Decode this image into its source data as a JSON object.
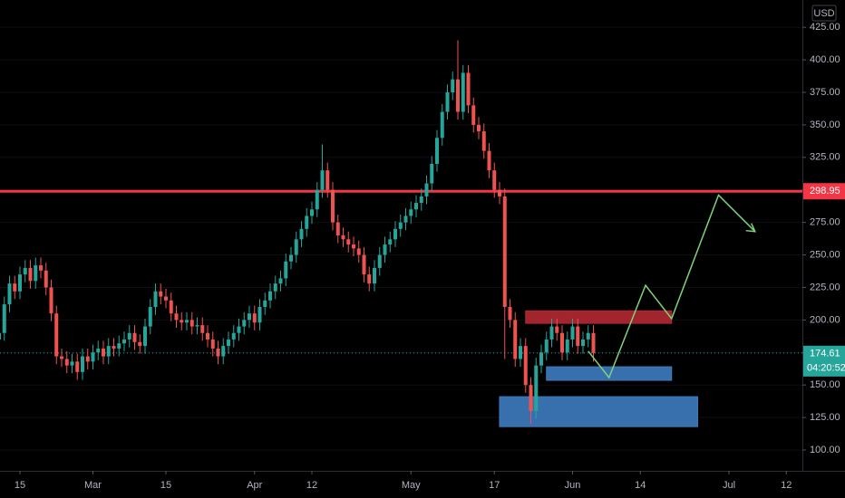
{
  "chart_data": {
    "type": "candlestick",
    "currency": "USD",
    "categories": [
      "Feb 11",
      "Feb 12",
      "Feb 13",
      "Feb 14",
      "Feb 15",
      "Feb 16",
      "Feb 17",
      "Feb 18",
      "Feb 19",
      "Feb 20",
      "Feb 21",
      "Feb 22",
      "Feb 23",
      "Feb 24",
      "Feb 25",
      "Feb 26",
      "Feb 27",
      "Feb 28",
      "Mar 1",
      "Mar 2",
      "Mar 3",
      "Mar 4",
      "Mar 5",
      "Mar 6",
      "Mar 7",
      "Mar 8",
      "Mar 9",
      "Mar 10",
      "Mar 11",
      "Mar 12",
      "Mar 13",
      "Mar 14",
      "Mar 15",
      "Mar 16",
      "Mar 17",
      "Mar 18",
      "Mar 19",
      "Mar 20",
      "Mar 21",
      "Mar 22",
      "Mar 23",
      "Mar 24",
      "Mar 25",
      "Mar 26",
      "Mar 27",
      "Mar 28",
      "Mar 29",
      "Mar 30",
      "Mar 31",
      "Apr 1",
      "Apr 2",
      "Apr 3",
      "Apr 4",
      "Apr 5",
      "Apr 6",
      "Apr 7",
      "Apr 8",
      "Apr 9",
      "Apr 10",
      "Apr 11",
      "Apr 12",
      "Apr 13",
      "Apr 14",
      "Apr 15",
      "Apr 16",
      "Apr 17",
      "Apr 18",
      "Apr 19",
      "Apr 20",
      "Apr 21",
      "Apr 22",
      "Apr 23",
      "Apr 24",
      "Apr 25",
      "Apr 26",
      "Apr 27",
      "Apr 28",
      "Apr 29",
      "Apr 30",
      "May 1",
      "May 2",
      "May 3",
      "May 4",
      "May 5",
      "May 6",
      "May 7",
      "May 8",
      "May 9",
      "May 10",
      "May 11",
      "May 12",
      "May 13",
      "May 14",
      "May 15",
      "May 16",
      "May 17",
      "May 18",
      "May 19",
      "May 20",
      "May 21",
      "May 22",
      "May 23",
      "May 24",
      "May 25",
      "May 26",
      "May 27",
      "May 28",
      "May 29",
      "May 30",
      "May 31",
      "Jun 1",
      "Jun 2",
      "Jun 3",
      "Jun 4",
      "Jun 5"
    ],
    "open": [
      185,
      190,
      212,
      228,
      222,
      235,
      240,
      230,
      242,
      238,
      225,
      205,
      172,
      170,
      165,
      168,
      160,
      172,
      168,
      175,
      178,
      172,
      180,
      178,
      182,
      185,
      190,
      183,
      180,
      195,
      210,
      222,
      218,
      215,
      205,
      200,
      198,
      200,
      195,
      196,
      190,
      185,
      178,
      172,
      180,
      185,
      190,
      195,
      200,
      205,
      198,
      210,
      215,
      222,
      228,
      232,
      245,
      250,
      262,
      270,
      280,
      285,
      300,
      315,
      300,
      275,
      265,
      262,
      258,
      255,
      250,
      235,
      228,
      240,
      250,
      258,
      262,
      270,
      275,
      280,
      285,
      290,
      295,
      305,
      320,
      340,
      360,
      375,
      385,
      360,
      390,
      365,
      350,
      345,
      330,
      315,
      300,
      295,
      210,
      200,
      170,
      180,
      150,
      130,
      165,
      175,
      185,
      195,
      190,
      175,
      185,
      195,
      180,
      185,
      190
    ],
    "high": [
      196,
      218,
      234,
      234,
      241,
      246,
      246,
      248,
      248,
      244,
      231,
      211,
      178,
      176,
      174,
      174,
      178,
      178,
      181,
      184,
      184,
      186,
      186,
      188,
      191,
      196,
      196,
      189,
      201,
      216,
      228,
      228,
      224,
      221,
      211,
      206,
      206,
      206,
      202,
      202,
      196,
      191,
      184,
      186,
      191,
      196,
      201,
      206,
      211,
      211,
      216,
      221,
      228,
      234,
      238,
      251,
      256,
      268,
      276,
      286,
      291,
      306,
      335,
      321,
      306,
      281,
      271,
      268,
      264,
      261,
      256,
      241,
      246,
      256,
      264,
      268,
      276,
      281,
      286,
      291,
      296,
      301,
      311,
      326,
      346,
      366,
      381,
      391,
      415,
      396,
      396,
      371,
      356,
      351,
      336,
      321,
      306,
      301,
      216,
      206,
      186,
      186,
      156,
      171,
      181,
      191,
      201,
      201,
      196,
      191,
      201,
      201,
      191,
      196,
      196
    ],
    "low": [
      179,
      184,
      206,
      216,
      216,
      229,
      224,
      224,
      232,
      219,
      199,
      166,
      164,
      159,
      159,
      154,
      154,
      162,
      162,
      169,
      166,
      166,
      172,
      172,
      176,
      179,
      177,
      174,
      174,
      189,
      204,
      212,
      209,
      199,
      194,
      192,
      192,
      189,
      189,
      184,
      179,
      172,
      166,
      166,
      174,
      179,
      184,
      189,
      194,
      192,
      192,
      204,
      209,
      216,
      222,
      226,
      239,
      244,
      256,
      264,
      274,
      279,
      294,
      294,
      269,
      259,
      256,
      252,
      249,
      244,
      229,
      222,
      222,
      234,
      244,
      252,
      256,
      264,
      269,
      274,
      279,
      284,
      289,
      299,
      314,
      334,
      354,
      369,
      354,
      354,
      359,
      344,
      339,
      324,
      309,
      294,
      289,
      170,
      194,
      164,
      164,
      144,
      120,
      124,
      159,
      169,
      179,
      184,
      169,
      169,
      179,
      174,
      174,
      179,
      168
    ],
    "close": [
      190,
      212,
      228,
      222,
      235,
      240,
      230,
      242,
      238,
      225,
      205,
      172,
      170,
      165,
      168,
      160,
      172,
      168,
      175,
      178,
      172,
      180,
      178,
      182,
      185,
      190,
      183,
      180,
      195,
      210,
      222,
      218,
      215,
      205,
      200,
      198,
      200,
      195,
      196,
      190,
      185,
      178,
      172,
      180,
      185,
      190,
      195,
      200,
      205,
      198,
      210,
      215,
      222,
      228,
      232,
      245,
      250,
      262,
      270,
      280,
      285,
      300,
      315,
      300,
      275,
      265,
      262,
      258,
      255,
      250,
      235,
      228,
      240,
      250,
      258,
      262,
      270,
      275,
      280,
      285,
      290,
      295,
      305,
      320,
      340,
      360,
      375,
      385,
      360,
      390,
      365,
      350,
      345,
      330,
      315,
      300,
      295,
      210,
      200,
      170,
      180,
      150,
      130,
      165,
      175,
      185,
      195,
      190,
      175,
      185,
      195,
      180,
      185,
      190,
      174.61
    ],
    "up_color": "#26a69a",
    "down_color": "#ef5350",
    "countdown": "04:20:52",
    "ylim": [
      84,
      446
    ],
    "yticks": [
      {
        "value": 100,
        "label": "100.00"
      },
      {
        "value": 125,
        "label": "125.00"
      },
      {
        "value": 150,
        "label": "150.00"
      },
      {
        "value": 175,
        "label": "175.00"
      },
      {
        "value": 200,
        "label": "200.00"
      },
      {
        "value": 225,
        "label": "225.00"
      },
      {
        "value": 250,
        "label": "250.00"
      },
      {
        "value": 275,
        "label": "275.00"
      },
      {
        "value": 300,
        "label": "300.00"
      },
      {
        "value": 325,
        "label": "325.00"
      },
      {
        "value": 350,
        "label": "350.00"
      },
      {
        "value": 375,
        "label": "375.00"
      },
      {
        "value": 400,
        "label": "400.00"
      },
      {
        "value": 425,
        "label": "425.00"
      }
    ],
    "xticks": [
      {
        "value": "Feb 15",
        "label": "15"
      },
      {
        "value": "Mar 1",
        "label": "Mar"
      },
      {
        "value": "Mar 15",
        "label": "15"
      },
      {
        "value": "Apr 1",
        "label": "Apr"
      },
      {
        "value": "Apr 12",
        "label": "12"
      },
      {
        "value": "May 1",
        "label": "May"
      },
      {
        "value": "May 17",
        "label": "17"
      },
      {
        "value": "Jun 1",
        "label": "Jun"
      },
      {
        "value": "Jun 14",
        "label": "14"
      },
      {
        "value": "Jul 1",
        "label": "Jul"
      },
      {
        "value": "Jul 12",
        "label": "12"
      }
    ],
    "hline": {
      "value": 298.95,
      "color": "#f23645"
    },
    "zones": [
      {
        "start": "May 23",
        "end": "Jun 20",
        "top": 207,
        "bottom": 197.4,
        "color": "#b22833"
      },
      {
        "start": "May 27",
        "end": "Jun 20",
        "top": 164,
        "bottom": 153.6,
        "color": "#3d7cc0"
      },
      {
        "start": "May 18",
        "end": "Jun 25",
        "top": 141,
        "bottom": 118,
        "color": "#3d7cc0"
      }
    ],
    "projection": {
      "x": [
        "Jun 4",
        "Jun 8",
        "Jun 15",
        "Jun 20",
        "Jun 29",
        "Jul 6"
      ],
      "values": [
        176,
        155.7,
        226.6,
        201,
        296,
        268
      ],
      "color": "#7ed37a"
    }
  }
}
